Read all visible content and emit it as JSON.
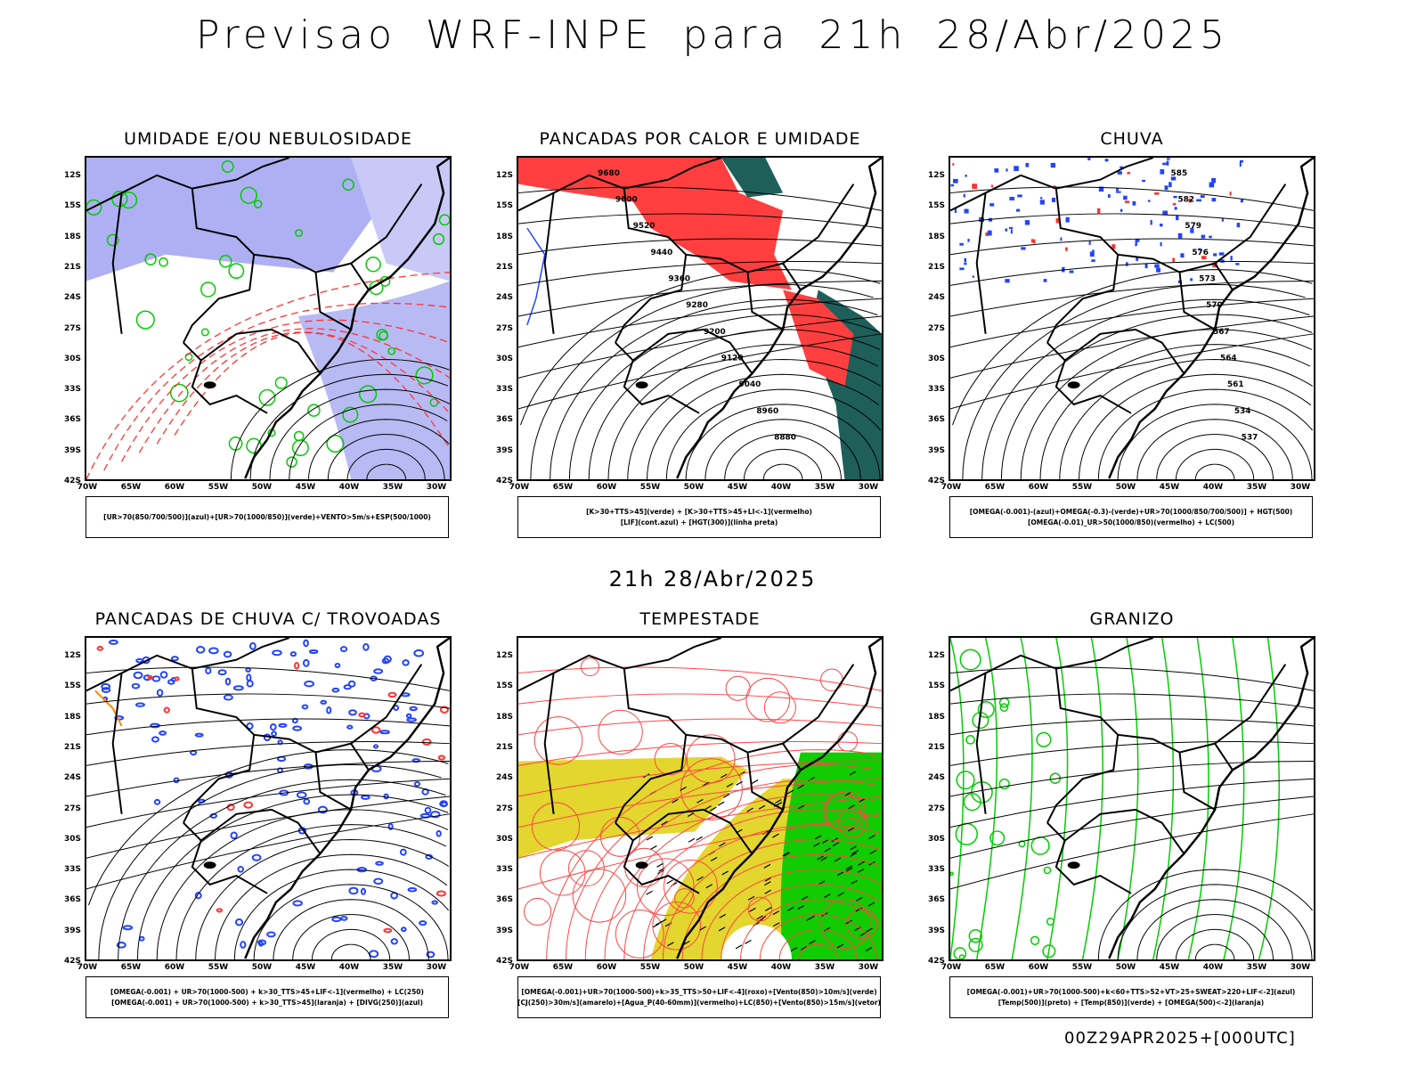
{
  "title": "Previsao WRF-INPE  para 21h 28/Abr/2025",
  "mid_title": "21h 28/Abr/2025",
  "footer": "00Z29APR2025+[000UTC]",
  "lat_ticks": [
    "12S",
    "15S",
    "18S",
    "21S",
    "24S",
    "27S",
    "30S",
    "33S",
    "36S",
    "39S",
    "42S"
  ],
  "lon_ticks": [
    "70W",
    "65W",
    "60W",
    "55W",
    "50W",
    "45W",
    "40W",
    "35W",
    "30W"
  ],
  "panels": [
    {
      "title": "UMIDADE E/OU NEBULOSIDADE",
      "legend": [
        "[UR>70(850/700/500)](azul)+[UR>70(1000/850)](verde)+VENTO>5m/s+ESP(500/1000)"
      ],
      "fills": [
        "#9a9cf0",
        "#c9c9f7"
      ],
      "lines": [
        "#00cc00",
        "#ff3333"
      ],
      "style": "umidade"
    },
    {
      "title": "PANCADAS POR CALOR E UMIDADE",
      "legend": [
        "[K>30+TTS>45](verde) + [K>30+TTS>45+LI<-1](vermelho)",
        "[LIF](cont.azul) + [HGT(300)](linha preta)"
      ],
      "fills": [
        "#ff3f3f",
        "#1e5f5a"
      ],
      "lines": [
        "#2244ff",
        "#000000"
      ],
      "style": "pancadas",
      "labels": [
        "9680",
        "9600",
        "9520",
        "9440",
        "9360",
        "9280",
        "9200",
        "9120",
        "9040",
        "8960",
        "8880"
      ]
    },
    {
      "title": "CHUVA",
      "legend": [
        "[OMEGA(-0.001)-(azul)+OMEGA(-0.3)-(verde)+UR>70(1000/850/700/500)] + HGT(500)",
        "[OMEGA(-0.01)_UR>50(1000/850)(vermelho) + LC(500)"
      ],
      "fills": [
        "#2244ff",
        "#ff3333"
      ],
      "lines": [
        "#000000"
      ],
      "style": "chuva",
      "labels": [
        "585",
        "582",
        "579",
        "576",
        "573",
        "570",
        "567",
        "564",
        "561",
        "534",
        "537"
      ]
    },
    {
      "title": "PANCADAS DE CHUVA C/ TROVOADAS",
      "legend": [
        "[OMEGA(-0.001) + UR>70(1000-500) + k>30_TTS>45+LIF<-1](vermelho) + LC(250)",
        "[OMEGA(-0.001) + UR>70(1000-500) + k>30_TTS>45](laranja) + [DIVG(250)](azul)"
      ],
      "fills": [
        "#2244ff",
        "#ff3333",
        "#ff8800"
      ],
      "lines": [
        "#000000"
      ],
      "style": "trovoadas"
    },
    {
      "title": "TEMPESTADE",
      "legend": [
        "[OMEGA(-0.001)+UR>70(1000-500)+k>35_TTS>50+LIF<-4](roxo)+[Vento(850)>10m/s](verde)",
        "[CJ(250)>30m/s](amarelo)+[Agua_P(40-60mm)](vermelho)+LC(850)+[Vento(850)>15m/s](vetor)"
      ],
      "fills": [
        "#e3d62e",
        "#11cc00"
      ],
      "lines": [
        "#ff4444"
      ],
      "style": "tempestade"
    },
    {
      "title": "GRANIZO",
      "legend": [
        "[OMEGA(-0.001)+UR>70(1000-500)+k<60+TTS>52+VT>25+SWEAT>220+LIF<-2](azul)",
        "[Temp(500)](preto) + [Temp(850)](verde) + [OMEGA(500)<-2](laranja)"
      ],
      "fills": [],
      "lines": [
        "#00cc00",
        "#000000"
      ],
      "style": "granizo"
    }
  ]
}
